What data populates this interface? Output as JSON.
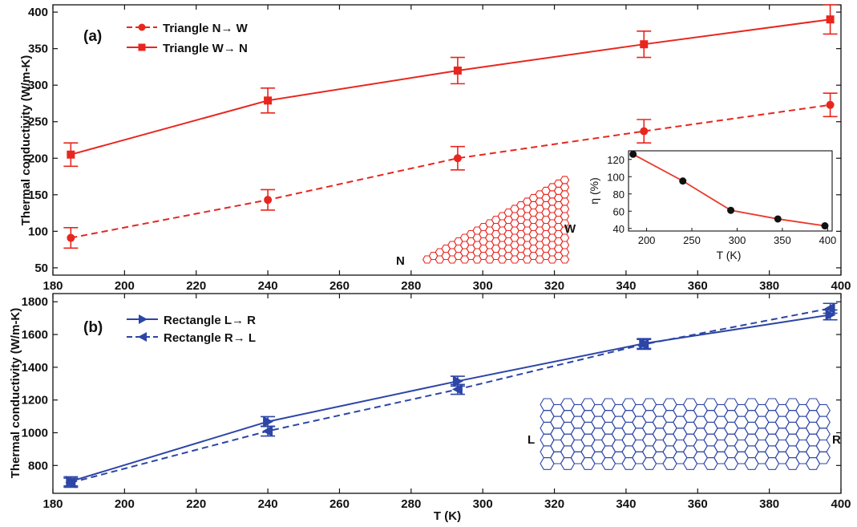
{
  "colors": {
    "red": "#e8261e",
    "blue": "#2c45a6",
    "inset": "#e83a2a",
    "black": "#111111"
  },
  "chart_data": [
    {
      "type": "line",
      "panel_label": "(a)",
      "xlabel": "",
      "ylabel": "Thermal conductivity (W/m-K)",
      "xlim": [
        180,
        400
      ],
      "ylim": [
        40,
        410
      ],
      "xticks": [
        180,
        200,
        220,
        240,
        260,
        280,
        300,
        320,
        340,
        360,
        380,
        400
      ],
      "yticks": [
        50,
        100,
        150,
        200,
        250,
        300,
        350,
        400
      ],
      "legend_position": "top-left",
      "series": [
        {
          "name": "Triangle N→ W",
          "style": "dashed",
          "marker": "circle",
          "x": [
            185,
            240,
            293,
            345,
            397
          ],
          "y": [
            91,
            143,
            200,
            237,
            273
          ],
          "err": [
            14,
            14,
            16,
            16,
            16
          ]
        },
        {
          "name": "Triangle W→ N",
          "style": "solid",
          "marker": "square",
          "x": [
            185,
            240,
            293,
            345,
            397
          ],
          "y": [
            205,
            279,
            320,
            356,
            390
          ],
          "err": [
            16,
            17,
            18,
            18,
            20
          ]
        }
      ],
      "structure_labels": {
        "left": "N",
        "right": "W"
      },
      "inset": {
        "type": "line",
        "xlabel": "T (K)",
        "ylabel": "η (%)",
        "xlim": [
          180,
          405
        ],
        "ylim": [
          37,
          130
        ],
        "xticks": [
          200,
          250,
          300,
          350,
          400
        ],
        "yticks": [
          40,
          60,
          80,
          100,
          120
        ],
        "x": [
          185,
          240,
          293,
          345,
          397
        ],
        "y": [
          126,
          95,
          61,
          51,
          43
        ]
      }
    },
    {
      "type": "line",
      "panel_label": "(b)",
      "xlabel": "T (K)",
      "ylabel": "Thermal conductivity (W/m-K)",
      "xlim": [
        180,
        400
      ],
      "ylim": [
        630,
        1850
      ],
      "xticks": [
        180,
        200,
        220,
        240,
        260,
        280,
        300,
        320,
        340,
        360,
        380,
        400
      ],
      "yticks": [
        800,
        1000,
        1200,
        1400,
        1600,
        1800
      ],
      "legend_position": "top-left",
      "series": [
        {
          "name": "Rectangle L→ R",
          "style": "solid",
          "marker": "triangle-right",
          "x": [
            185,
            240,
            293,
            345,
            397
          ],
          "y": [
            703,
            1068,
            1315,
            1545,
            1720
          ],
          "err": [
            28,
            30,
            30,
            30,
            30
          ]
        },
        {
          "name": "Rectangle R→ L",
          "style": "dashed",
          "marker": "triangle-left",
          "x": [
            185,
            240,
            293,
            345,
            397
          ],
          "y": [
            695,
            1010,
            1265,
            1540,
            1760
          ],
          "err": [
            28,
            30,
            30,
            30,
            30
          ]
        }
      ],
      "structure_labels": {
        "left": "L",
        "right": "R"
      }
    }
  ]
}
